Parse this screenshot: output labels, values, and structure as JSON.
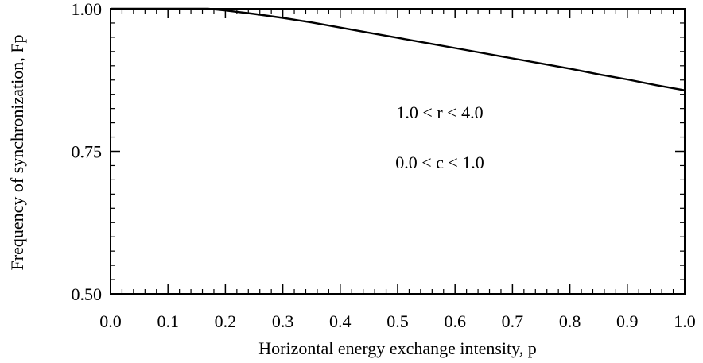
{
  "chart_data": {
    "type": "line",
    "title": "",
    "xlabel": "Horizontal energy exchange intensity, p",
    "ylabel": "Frequency of synchronization, Fp",
    "xlim": [
      0.0,
      1.0
    ],
    "ylim": [
      0.5,
      1.0
    ],
    "x_ticks": [
      0.0,
      0.1,
      0.2,
      0.3,
      0.4,
      0.5,
      0.6,
      0.7,
      0.8,
      0.9,
      1.0
    ],
    "x_tick_labels": [
      "0.0",
      "0.1",
      "0.2",
      "0.3",
      "0.4",
      "0.5",
      "0.6",
      "0.7",
      "0.8",
      "0.9",
      "1.0"
    ],
    "y_ticks": [
      0.5,
      0.75,
      1.0
    ],
    "y_tick_labels": [
      "0.50",
      "0.75",
      "1.00"
    ],
    "grid": false,
    "series": [
      {
        "x": [
          0.0,
          0.05,
          0.1,
          0.15,
          0.17,
          0.2,
          0.25,
          0.3,
          0.35,
          0.4,
          0.45,
          0.5,
          0.55,
          0.6,
          0.65,
          0.7,
          0.75,
          0.8,
          0.85,
          0.9,
          0.95,
          1.0
        ],
        "y": [
          1.0,
          1.0,
          1.0,
          1.0,
          1.0,
          0.997,
          0.991,
          0.984,
          0.976,
          0.967,
          0.958,
          0.949,
          0.94,
          0.931,
          0.922,
          0.913,
          0.904,
          0.895,
          0.885,
          0.876,
          0.866,
          0.857
        ]
      }
    ],
    "annotations": [
      "1.0 < r < 4.0",
      "0.0 < c < 1.0"
    ]
  }
}
